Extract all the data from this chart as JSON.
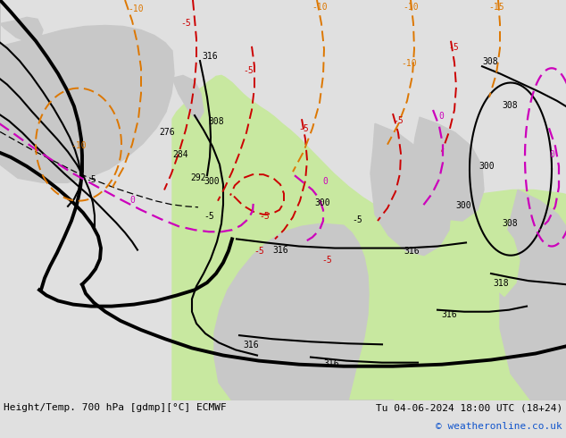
{
  "title_left": "Height/Temp. 700 hPa [gdmp][°C] ECMWF",
  "title_right": "Tu 04-06-2024 18:00 UTC (18+24)",
  "copyright": "© weatheronline.co.uk",
  "bg_color": "#e0e0e0",
  "land_green": "#c8e8a0",
  "land_gray": "#c8c8c8",
  "ocean_color": "#d8d8d8",
  "figsize": [
    6.34,
    4.9
  ],
  "dpi": 100,
  "bottom_bar_color": "#eeeeee",
  "bottom_text_color": "#000000",
  "copyright_color": "#1155cc",
  "black_contour_lw": 1.5,
  "thick_contour_lw": 2.8,
  "temp_lw": 1.4,
  "red_color": "#cc0000",
  "magenta_color": "#cc00bb",
  "orange_color": "#dd7700"
}
